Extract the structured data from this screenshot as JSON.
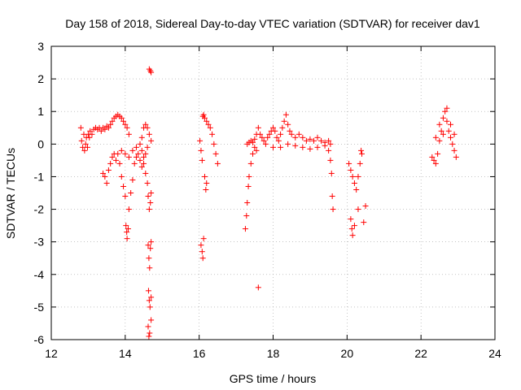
{
  "chart_data": {
    "type": "scatter",
    "title": "Day 158 of 2018, Sidereal Day-to-day VTEC variation (SDTVAR) for receiver dav1",
    "xlabel": "GPS time / hours",
    "ylabel": "SDTVAR / TECUs",
    "xlim": [
      12,
      24
    ],
    "ylim": [
      -6,
      3
    ],
    "xticks": [
      12,
      14,
      16,
      18,
      20,
      22,
      24
    ],
    "yticks": [
      -6,
      -5,
      -4,
      -3,
      -2,
      -1,
      0,
      1,
      2,
      3
    ],
    "grid": true,
    "marker": "+",
    "series": [
      {
        "name": "dav1",
        "color": "#ff0000",
        "points": [
          [
            12.8,
            0.5
          ],
          [
            12.82,
            0.1
          ],
          [
            12.85,
            -0.1
          ],
          [
            12.88,
            0.3
          ],
          [
            12.9,
            -0.2
          ],
          [
            12.93,
            0.0
          ],
          [
            12.95,
            0.2
          ],
          [
            12.98,
            -0.1
          ],
          [
            13.0,
            0.3
          ],
          [
            13.03,
            0.2
          ],
          [
            13.05,
            0.4
          ],
          [
            13.1,
            0.3
          ],
          [
            13.15,
            0.45
          ],
          [
            13.2,
            0.5
          ],
          [
            13.25,
            0.45
          ],
          [
            13.3,
            0.5
          ],
          [
            13.35,
            0.4
          ],
          [
            13.4,
            0.5
          ],
          [
            13.45,
            0.45
          ],
          [
            13.5,
            0.55
          ],
          [
            13.55,
            0.5
          ],
          [
            13.6,
            0.6
          ],
          [
            13.65,
            0.7
          ],
          [
            13.7,
            0.8
          ],
          [
            13.75,
            0.85
          ],
          [
            13.8,
            0.9
          ],
          [
            13.85,
            0.85
          ],
          [
            13.9,
            0.8
          ],
          [
            13.95,
            0.7
          ],
          [
            14.0,
            0.6
          ],
          [
            14.05,
            0.5
          ],
          [
            14.1,
            0.3
          ],
          [
            13.4,
            -0.9
          ],
          [
            13.45,
            -1.0
          ],
          [
            13.5,
            -1.2
          ],
          [
            13.55,
            -0.8
          ],
          [
            13.6,
            -0.6
          ],
          [
            13.65,
            -0.4
          ],
          [
            13.7,
            -0.3
          ],
          [
            13.75,
            -0.5
          ],
          [
            13.8,
            -0.3
          ],
          [
            13.85,
            -0.6
          ],
          [
            13.9,
            -1.0
          ],
          [
            13.95,
            -1.3
          ],
          [
            14.0,
            -1.6
          ],
          [
            14.02,
            -2.5
          ],
          [
            14.04,
            -2.7
          ],
          [
            14.05,
            -2.9
          ],
          [
            14.08,
            -2.6
          ],
          [
            14.1,
            -2.0
          ],
          [
            14.15,
            -1.5
          ],
          [
            14.2,
            -1.1
          ],
          [
            14.25,
            -0.6
          ],
          [
            14.3,
            -0.4
          ],
          [
            14.35,
            -0.3
          ],
          [
            14.4,
            -0.5
          ],
          [
            14.45,
            -0.7
          ],
          [
            14.5,
            -0.4
          ],
          [
            14.55,
            -0.9
          ],
          [
            14.6,
            -1.2
          ],
          [
            13.9,
            -0.2
          ],
          [
            14.0,
            -0.3
          ],
          [
            14.1,
            -0.4
          ],
          [
            14.2,
            -0.2
          ],
          [
            14.3,
            -0.1
          ],
          [
            14.4,
            0.0
          ],
          [
            14.45,
            0.2
          ],
          [
            14.5,
            0.5
          ],
          [
            14.55,
            0.6
          ],
          [
            14.6,
            0.5
          ],
          [
            14.65,
            0.3
          ],
          [
            14.7,
            0.1
          ],
          [
            14.45,
            -0.2
          ],
          [
            14.5,
            -0.6
          ],
          [
            14.55,
            -0.3
          ],
          [
            14.6,
            -0.1
          ],
          [
            14.65,
            2.3
          ],
          [
            14.68,
            2.25
          ],
          [
            14.7,
            2.2
          ],
          [
            14.62,
            -1.6
          ],
          [
            14.65,
            -2.0
          ],
          [
            14.68,
            -1.8
          ],
          [
            14.7,
            -1.5
          ],
          [
            14.62,
            -3.1
          ],
          [
            14.64,
            -3.5
          ],
          [
            14.66,
            -3.8
          ],
          [
            14.68,
            -3.2
          ],
          [
            14.7,
            -3.0
          ],
          [
            14.63,
            -4.5
          ],
          [
            14.65,
            -4.8
          ],
          [
            14.67,
            -5.0
          ],
          [
            14.7,
            -4.7
          ],
          [
            14.62,
            -5.6
          ],
          [
            14.64,
            -5.9
          ],
          [
            14.66,
            -5.8
          ],
          [
            14.7,
            -5.4
          ],
          [
            16.02,
            0.1
          ],
          [
            16.05,
            -0.2
          ],
          [
            16.08,
            -0.5
          ],
          [
            16.1,
            0.85
          ],
          [
            16.12,
            0.9
          ],
          [
            16.15,
            0.8
          ],
          [
            16.2,
            0.7
          ],
          [
            16.25,
            0.6
          ],
          [
            16.3,
            0.5
          ],
          [
            16.35,
            0.3
          ],
          [
            16.4,
            0.0
          ],
          [
            16.45,
            -0.3
          ],
          [
            16.5,
            -0.6
          ],
          [
            16.15,
            -1.0
          ],
          [
            16.18,
            -1.4
          ],
          [
            16.2,
            -1.2
          ],
          [
            16.05,
            -3.1
          ],
          [
            16.08,
            -3.3
          ],
          [
            16.1,
            -3.5
          ],
          [
            16.12,
            -2.9
          ],
          [
            17.25,
            -2.6
          ],
          [
            17.28,
            -2.2
          ],
          [
            17.3,
            -1.8
          ],
          [
            17.33,
            -1.3
          ],
          [
            17.35,
            -1.0
          ],
          [
            17.4,
            -0.6
          ],
          [
            17.45,
            -0.3
          ],
          [
            17.5,
            -0.1
          ],
          [
            17.55,
            -0.2
          ],
          [
            17.6,
            -4.4
          ],
          [
            17.3,
            0.0
          ],
          [
            17.35,
            0.05
          ],
          [
            17.4,
            0.1
          ],
          [
            17.45,
            0.05
          ],
          [
            17.5,
            0.15
          ],
          [
            17.55,
            0.3
          ],
          [
            17.6,
            0.5
          ],
          [
            17.65,
            0.3
          ],
          [
            17.7,
            0.2
          ],
          [
            17.75,
            0.1
          ],
          [
            17.8,
            0.0
          ],
          [
            17.85,
            0.2
          ],
          [
            17.9,
            0.3
          ],
          [
            17.95,
            0.4
          ],
          [
            18.0,
            0.5
          ],
          [
            18.05,
            0.4
          ],
          [
            18.1,
            0.2
          ],
          [
            18.15,
            0.1
          ],
          [
            18.2,
            0.3
          ],
          [
            18.25,
            0.5
          ],
          [
            18.3,
            0.7
          ],
          [
            18.35,
            0.9
          ],
          [
            18.4,
            0.6
          ],
          [
            18.45,
            0.4
          ],
          [
            18.5,
            0.3
          ],
          [
            18.6,
            0.2
          ],
          [
            18.7,
            0.3
          ],
          [
            18.8,
            0.2
          ],
          [
            18.9,
            0.1
          ],
          [
            19.0,
            0.15
          ],
          [
            19.1,
            0.1
          ],
          [
            19.2,
            0.2
          ],
          [
            19.3,
            0.1
          ],
          [
            19.4,
            0.05
          ],
          [
            19.5,
            0.1
          ],
          [
            19.55,
            0.0
          ],
          [
            18.0,
            -0.1
          ],
          [
            18.2,
            -0.1
          ],
          [
            18.4,
            0.0
          ],
          [
            18.6,
            -0.05
          ],
          [
            18.8,
            -0.1
          ],
          [
            19.0,
            -0.15
          ],
          [
            19.2,
            -0.1
          ],
          [
            19.4,
            -0.05
          ],
          [
            19.5,
            -0.2
          ],
          [
            19.55,
            -0.5
          ],
          [
            19.58,
            -0.9
          ],
          [
            19.6,
            -1.6
          ],
          [
            19.62,
            -2.0
          ],
          [
            20.05,
            -0.6
          ],
          [
            20.1,
            -0.8
          ],
          [
            20.15,
            -1.0
          ],
          [
            20.2,
            -1.2
          ],
          [
            20.25,
            -1.4
          ],
          [
            20.3,
            -1.0
          ],
          [
            20.35,
            -0.6
          ],
          [
            20.38,
            -0.2
          ],
          [
            20.4,
            -0.3
          ],
          [
            20.1,
            -2.3
          ],
          [
            20.13,
            -2.6
          ],
          [
            20.15,
            -2.8
          ],
          [
            20.2,
            -2.5
          ],
          [
            20.3,
            -2.0
          ],
          [
            20.45,
            -2.4
          ],
          [
            20.5,
            -1.9
          ],
          [
            22.3,
            -0.4
          ],
          [
            22.35,
            -0.5
          ],
          [
            22.4,
            -0.6
          ],
          [
            22.45,
            -0.3
          ],
          [
            22.5,
            0.1
          ],
          [
            22.55,
            0.4
          ],
          [
            22.6,
            0.8
          ],
          [
            22.65,
            1.0
          ],
          [
            22.7,
            0.7
          ],
          [
            22.75,
            0.4
          ],
          [
            22.8,
            0.2
          ],
          [
            22.85,
            0.0
          ],
          [
            22.9,
            -0.2
          ],
          [
            22.95,
            -0.4
          ],
          [
            22.4,
            0.2
          ],
          [
            22.5,
            0.6
          ],
          [
            22.6,
            0.3
          ],
          [
            22.7,
            1.1
          ],
          [
            22.8,
            0.6
          ],
          [
            22.9,
            0.3
          ]
        ]
      }
    ]
  }
}
